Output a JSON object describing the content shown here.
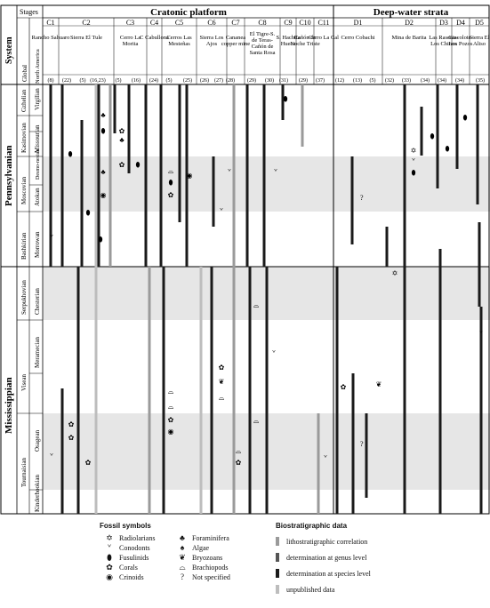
{
  "header": {
    "cratonic": "Cratonic platform",
    "deepwater": "Deep-water strata",
    "system": "System",
    "stages": "Stages",
    "global": "Global",
    "north_america": "North America"
  },
  "columns": [
    {
      "group": "C1",
      "loc": "Rancho Sahuaro",
      "ref": "(8)"
    },
    {
      "group": "",
      "loc": "",
      "ref": "(22)"
    },
    {
      "group": "C2",
      "loc": "Sierra El Tule",
      "ref": "(5)"
    },
    {
      "group": "",
      "loc": "",
      "ref": "(16,23)"
    },
    {
      "group": "C3",
      "loc": "Cerro La Morita",
      "ref": "(5)"
    },
    {
      "group": "",
      "loc": "",
      "ref": "(16)"
    },
    {
      "group": "C4",
      "loc": "C Cabullona",
      "ref": "(24)"
    },
    {
      "group": "C5",
      "loc": "Cerros Las Mesteñas",
      "ref": "(5)"
    },
    {
      "group": "",
      "loc": "",
      "ref": "(25)"
    },
    {
      "group": "C6",
      "loc": "Sierra Los Ajos",
      "ref": "(26)"
    },
    {
      "group": "",
      "loc": "",
      "ref": "(27)"
    },
    {
      "group": "C7",
      "loc": "Cananea copper mine",
      "ref": "(28)"
    },
    {
      "group": "C8",
      "loc": "El Tigre-S. de Teras-Cañón de Santa Rosa",
      "ref": "(29)"
    },
    {
      "group": "",
      "loc": "",
      "ref": "(30)"
    },
    {
      "group": "C9",
      "loc": "S. Hachita Hueca",
      "ref": "(31)"
    },
    {
      "group": "C10",
      "loc": "Cañón de Noche Triste",
      "ref": "(29)"
    },
    {
      "group": "C11",
      "loc": "Cerro La Cal",
      "ref": "(37)"
    },
    {
      "group": "D1",
      "loc": "Cerro Cobachi",
      "ref": "(12)"
    },
    {
      "group": "",
      "loc": "",
      "ref": "(13)"
    },
    {
      "group": "",
      "loc": "",
      "ref": "(5)"
    },
    {
      "group": "D2",
      "loc": "Mina de Barita",
      "ref": "(32)"
    },
    {
      "group": "",
      "loc": "",
      "ref": "(33)"
    },
    {
      "group": "",
      "loc": "",
      "ref": "(34)"
    },
    {
      "group": "D3",
      "loc": "Las Raseras-Los Chinos",
      "ref": "(34)"
    },
    {
      "group": "D4",
      "loc": "Giacolote-Los Pozos",
      "ref": "(34)"
    },
    {
      "group": "D5",
      "loc": "Sierra El Aliso",
      "ref": "(35)"
    }
  ],
  "systems": [
    {
      "label": "Pennsylvanian"
    },
    {
      "label": "Mississippian"
    }
  ],
  "stages": [
    {
      "global": "Gzhelian",
      "na": "Virgilian"
    },
    {
      "global": "Kasimovian",
      "na": "Missourian"
    },
    {
      "global": "Moscovian",
      "na": "Desmo-nesian"
    },
    {
      "global": "",
      "na": "Atokan"
    },
    {
      "global": "Bashkirian",
      "na": "Morrowan"
    },
    {
      "global": "Serpukhovian",
      "na": "Chesterian"
    },
    {
      "global": "Visean",
      "na": "Meramecian"
    },
    {
      "global": "",
      "na": "Osagean"
    },
    {
      "global": "Tournaisian",
      "na": "Kinderhookian"
    }
  ],
  "question_marks": [
    "?",
    "?"
  ],
  "legend": {
    "fossil_title": "Fossil symbols",
    "fossils_left": [
      {
        "icon": "radiolarian-icon",
        "glyph": "✡",
        "label": "Radiolarians"
      },
      {
        "icon": "conodont-icon",
        "glyph": "ᘁ",
        "label": "Conodonts"
      },
      {
        "icon": "fusulinid-icon",
        "glyph": "⬮",
        "label": "Fusulinids"
      },
      {
        "icon": "coral-icon",
        "glyph": "✿",
        "label": "Corals"
      },
      {
        "icon": "crinoid-icon",
        "glyph": "◉",
        "label": "Crinoids"
      }
    ],
    "fossils_right": [
      {
        "icon": "foraminifera-icon",
        "glyph": "♣",
        "label": "Foraminifera"
      },
      {
        "icon": "algae-icon",
        "glyph": "♠",
        "label": "Algae"
      },
      {
        "icon": "bryozoan-icon",
        "glyph": "❦",
        "label": "Bryozoans"
      },
      {
        "icon": "brachiopod-icon",
        "glyph": "⌓",
        "label": "Brachiopods"
      },
      {
        "icon": "not-specified-icon",
        "glyph": "?",
        "label": "Not specified"
      }
    ],
    "bio_title": "Biostratigraphic data",
    "bio": [
      {
        "label": "lithostratigraphic correlation",
        "color": "#9a9a9a"
      },
      {
        "label": "determination at genus level",
        "color": "#555555"
      },
      {
        "label": "determination at species level",
        "color": "#1a1a1a"
      },
      {
        "label": "unpublished data",
        "color": "#bdbdbd"
      }
    ]
  }
}
